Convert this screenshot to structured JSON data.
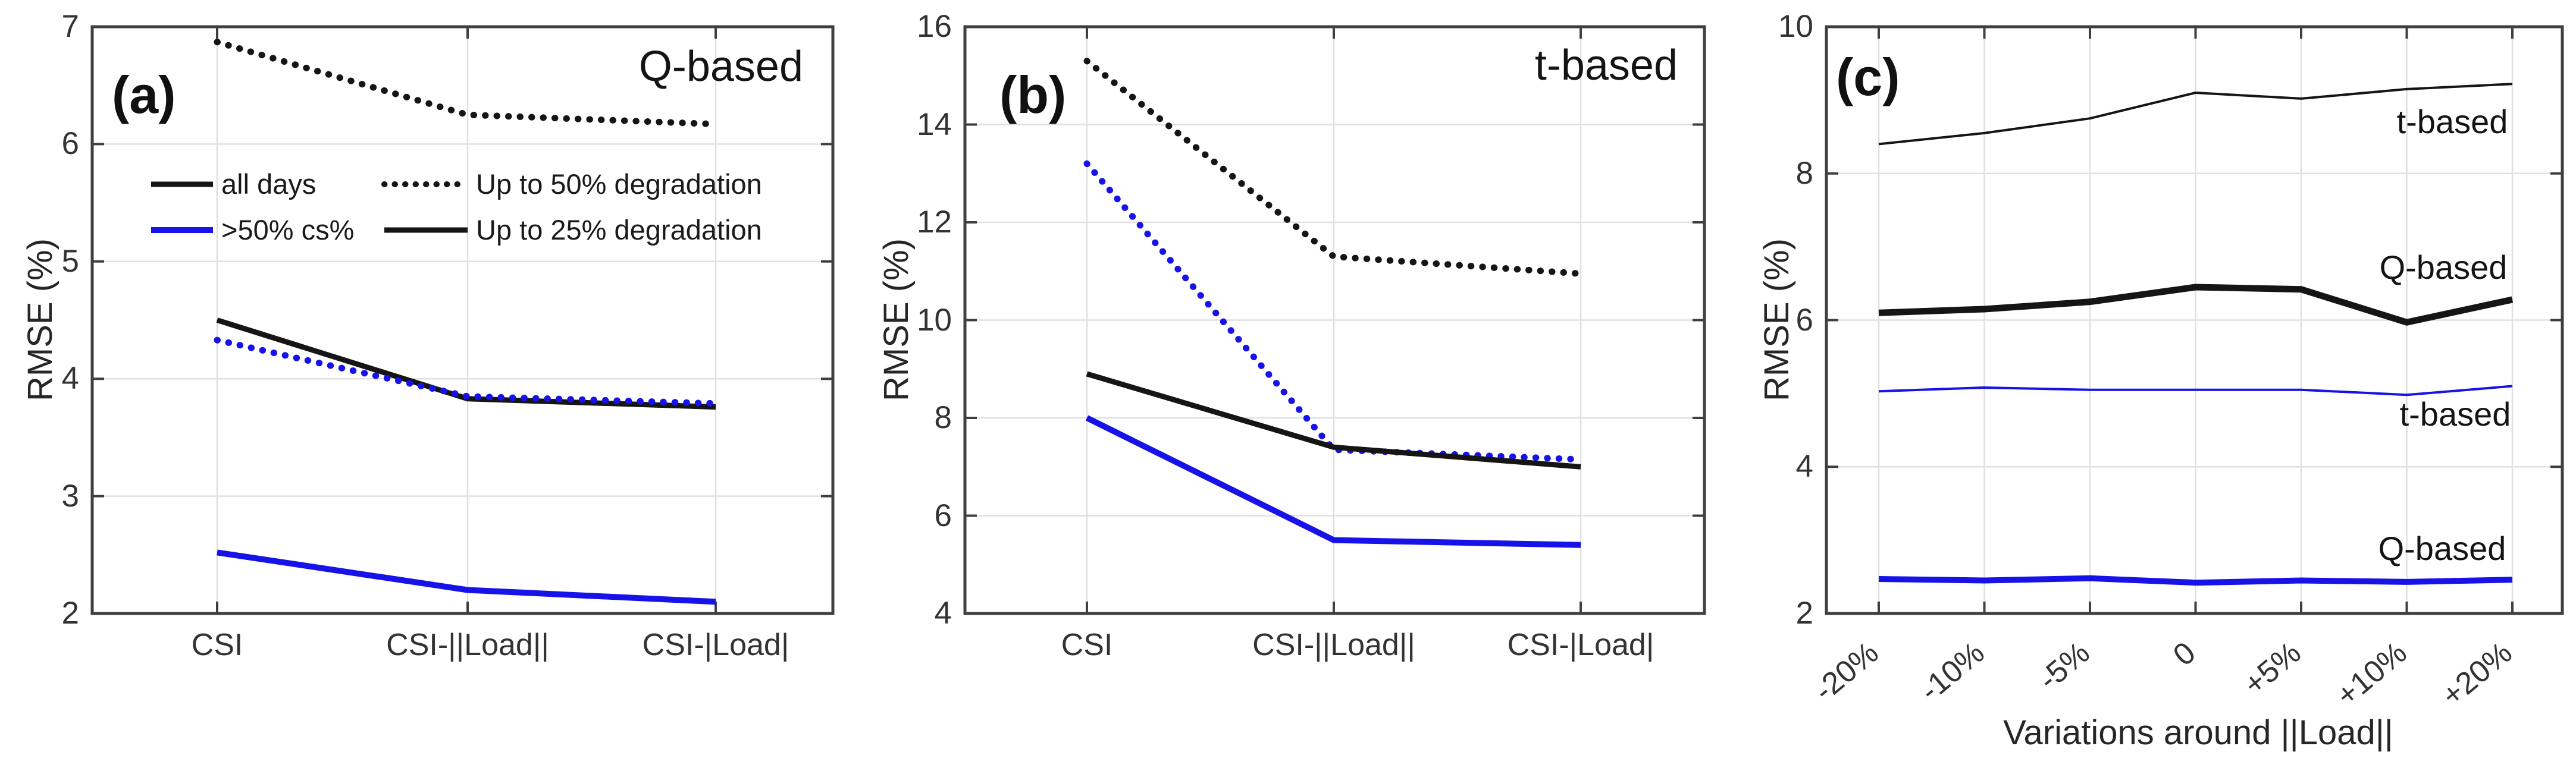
{
  "figure": {
    "background": "#ffffff",
    "palette": {
      "black": "#151515",
      "blue": "#1713e8",
      "grid": "#e0e0e0",
      "axis": "#3f3f3f",
      "text": "#262626"
    }
  },
  "chart_data": [
    {
      "type": "line",
      "panel_label": "(a)",
      "title": "Q-based",
      "ylabel": "RMSE (%)",
      "xlabel": "",
      "ylim": [
        2,
        7
      ],
      "yticks": [
        2,
        3,
        4,
        5,
        6,
        7
      ],
      "grid": "on",
      "legend_position": "upper-left-inside",
      "categories": [
        "CSI",
        "CSI-||Load||",
        "CSI-|Load|"
      ],
      "series": [
        {
          "name": "all days, up to 50% degradation",
          "color": "black",
          "style": "dotted",
          "lw": 11,
          "values": [
            6.87,
            6.25,
            6.17
          ]
        },
        {
          "name": "all days, up to 25% degradation",
          "color": "black",
          "style": "solid",
          "lw": 9,
          "values": [
            4.5,
            3.83,
            3.76
          ]
        },
        {
          "name": ">50% cs%, up to 50% degradation",
          "color": "blue",
          "style": "dotted",
          "lw": 11,
          "values": [
            4.33,
            3.85,
            3.79
          ]
        },
        {
          "name": ">50% cs%, up to 25% degradation",
          "color": "blue",
          "style": "solid",
          "lw": 10,
          "values": [
            2.52,
            2.2,
            2.1
          ]
        }
      ],
      "legend": [
        {
          "label": "all days",
          "color": "black",
          "style": "solid"
        },
        {
          "label": ">50% cs%",
          "color": "blue",
          "style": "solid"
        },
        {
          "label": "Up to 50% degradation",
          "color": "black",
          "style": "dotted"
        },
        {
          "label": "Up to 25% degradation",
          "color": "black",
          "style": "solid"
        }
      ]
    },
    {
      "type": "line",
      "panel_label": "(b)",
      "title": "t-based",
      "ylabel": "RMSE (%)",
      "xlabel": "",
      "ylim": [
        4,
        16
      ],
      "yticks": [
        4,
        6,
        8,
        10,
        12,
        14,
        16
      ],
      "grid": "on",
      "categories": [
        "CSI",
        "CSI-||Load||",
        "CSI-|Load|"
      ],
      "series": [
        {
          "name": "all days, up to 50% degradation",
          "color": "black",
          "style": "dotted",
          "lw": 11,
          "values": [
            15.3,
            11.3,
            10.95
          ]
        },
        {
          "name": ">50% cs%, up to 50% degradation",
          "color": "blue",
          "style": "dotted",
          "lw": 11,
          "values": [
            13.2,
            7.35,
            7.15
          ]
        },
        {
          "name": "all days, up to 25% degradation",
          "color": "black",
          "style": "solid",
          "lw": 9,
          "values": [
            8.9,
            7.4,
            7.0
          ]
        },
        {
          "name": ">50% cs%, up to 25% degradation",
          "color": "blue",
          "style": "solid",
          "lw": 10,
          "values": [
            8.0,
            5.5,
            5.4
          ]
        }
      ]
    },
    {
      "type": "line",
      "panel_label": "(c)",
      "title": "",
      "ylabel": "RMSE (%)",
      "xlabel": "Variations around ||Load||",
      "ylim": [
        2,
        10
      ],
      "yticks": [
        2,
        4,
        6,
        8,
        10
      ],
      "grid": "on",
      "xtick_angle": 40,
      "categories": [
        "-20%",
        "-10%",
        "-5%",
        "0",
        "+5%",
        "+10%",
        "+20%"
      ],
      "series": [
        {
          "name": "t-based, all days",
          "color": "black",
          "style": "solid",
          "lw": 4,
          "values": [
            8.4,
            8.55,
            8.75,
            9.1,
            9.02,
            9.15,
            9.22
          ]
        },
        {
          "name": "Q-based, all days",
          "color": "black",
          "style": "solid",
          "lw": 11,
          "values": [
            6.1,
            6.15,
            6.25,
            6.45,
            6.42,
            5.97,
            6.28
          ]
        },
        {
          "name": "t-based, >50% cs%",
          "color": "blue",
          "style": "solid",
          "lw": 4,
          "values": [
            5.03,
            5.08,
            5.05,
            5.05,
            5.05,
            4.98,
            5.1
          ]
        },
        {
          "name": "Q-based, >50% cs%",
          "color": "blue",
          "style": "solid",
          "lw": 10,
          "values": [
            2.47,
            2.45,
            2.48,
            2.42,
            2.45,
            2.43,
            2.46
          ]
        }
      ],
      "annotations": [
        {
          "text": "t-based"
        },
        {
          "text": "Q-based"
        },
        {
          "text": "t-based"
        },
        {
          "text": "Q-based"
        }
      ]
    }
  ]
}
